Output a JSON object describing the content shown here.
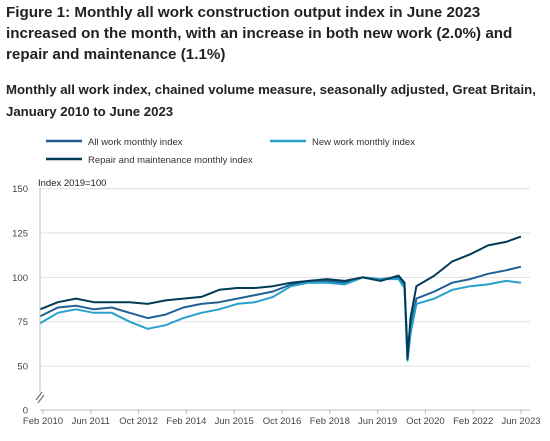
{
  "figure": {
    "title": "Figure 1: Monthly all work construction output index in June 2023 increased on the month, with an increase in both new work (2.0%) and repair and maintenance (1.1%)",
    "subtitle": "Monthly all work index, chained volume measure, seasonally adjusted, Great Britain, January 2010 to June 2023"
  },
  "chart_data": {
    "type": "line",
    "title": "Monthly all work index, chained volume measure, seasonally adjusted, Great Britain, January 2010 to June 2023",
    "xlabel": "",
    "ylabel": "Index 2019=100",
    "ylim": [
      0,
      150
    ],
    "y_ticks": [
      0,
      50,
      75,
      100,
      125,
      150
    ],
    "axis_break": true,
    "x_ticks": [
      "Feb 2010",
      "Jun 2011",
      "Oct 2012",
      "Feb 2014",
      "Jun 2015",
      "Oct 2016",
      "Feb 2018",
      "Jun 2019",
      "Oct 2020",
      "Feb 2022",
      "Jun 2023"
    ],
    "grid": true,
    "legend_position": "top-left",
    "x_dates": [
      "Jan 2010",
      "Jul 2010",
      "Jan 2011",
      "Jul 2011",
      "Jan 2012",
      "Jul 2012",
      "Jan 2013",
      "Jul 2013",
      "Jan 2014",
      "Jul 2014",
      "Jan 2015",
      "Jul 2015",
      "Jan 2016",
      "Jul 2016",
      "Jan 2017",
      "Jul 2017",
      "Jan 2018",
      "Jul 2018",
      "Jan 2019",
      "Jul 2019",
      "Jan 2020",
      "Mar 2020",
      "Apr 2020",
      "May 2020",
      "Jul 2020",
      "Jan 2021",
      "Jul 2021",
      "Jan 2022",
      "Jul 2022",
      "Jan 2023",
      "Jun 2023"
    ],
    "series": [
      {
        "name": "All work monthly index",
        "color": "#206095",
        "values": [
          78,
          83,
          84,
          82,
          83,
          80,
          77,
          79,
          83,
          85,
          86,
          88,
          90,
          92,
          96,
          98,
          98,
          97,
          100,
          99,
          100,
          95,
          59,
          72,
          88,
          92,
          97,
          99,
          102,
          104,
          106
        ]
      },
      {
        "name": "New work monthly index",
        "color": "#27a0cc",
        "values": [
          74,
          80,
          82,
          80,
          80,
          75,
          71,
          73,
          77,
          80,
          82,
          85,
          86,
          89,
          95,
          97,
          97,
          96,
          100,
          99,
          99,
          94,
          53,
          68,
          85,
          88,
          93,
          95,
          96,
          98,
          97
        ]
      },
      {
        "name": "Repair and maintenance monthly index",
        "color": "#003c57",
        "values": [
          82,
          86,
          88,
          86,
          86,
          86,
          85,
          87,
          88,
          89,
          93,
          94,
          94,
          95,
          97,
          98,
          99,
          98,
          100,
          98,
          101,
          97,
          54,
          77,
          95,
          101,
          109,
          113,
          118,
          120,
          123
        ]
      }
    ]
  }
}
